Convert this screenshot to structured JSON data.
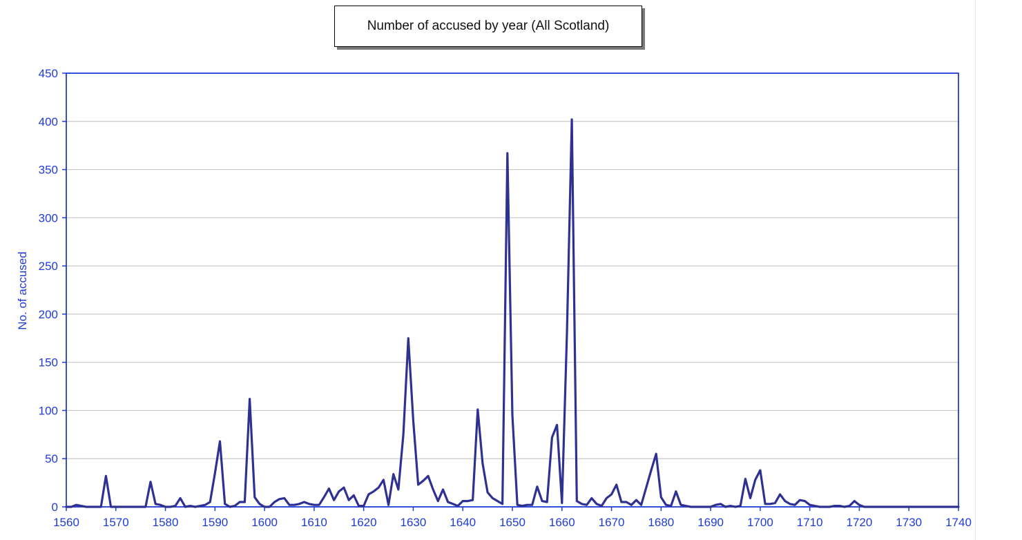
{
  "chart_data": {
    "type": "line",
    "title": "Number of accused by year (All Scotland)",
    "xlabel": "",
    "ylabel": "No. of accused",
    "xlim": [
      1560,
      1740
    ],
    "ylim": [
      0,
      450
    ],
    "x_ticks": [
      1560,
      1570,
      1580,
      1590,
      1600,
      1610,
      1620,
      1630,
      1640,
      1650,
      1660,
      1670,
      1680,
      1690,
      1700,
      1710,
      1720,
      1730,
      1740
    ],
    "y_ticks": [
      0,
      50,
      100,
      150,
      200,
      250,
      300,
      350,
      400,
      450
    ],
    "grid": "horizontal",
    "legend": "none",
    "colors": {
      "line": "#2e3192",
      "axis": "#1f3bd6",
      "tick_text": "#1f3bd6",
      "grid": "#c8c8c8"
    },
    "series": [
      {
        "x": [
          1560,
          1561,
          1562,
          1563,
          1564,
          1565,
          1566,
          1567,
          1568,
          1569,
          1570,
          1571,
          1572,
          1573,
          1574,
          1575,
          1576,
          1577,
          1578,
          1579,
          1580,
          1581,
          1582,
          1583,
          1584,
          1585,
          1586,
          1587,
          1588,
          1589,
          1590,
          1591,
          1592,
          1593,
          1594,
          1595,
          1596,
          1597,
          1598,
          1599,
          1600,
          1601,
          1602,
          1603,
          1604,
          1605,
          1606,
          1607,
          1608,
          1609,
          1610,
          1611,
          1612,
          1613,
          1614,
          1615,
          1616,
          1617,
          1618,
          1619,
          1620,
          1621,
          1622,
          1623,
          1624,
          1625,
          1626,
          1627,
          1628,
          1629,
          1630,
          1631,
          1632,
          1633,
          1634,
          1635,
          1636,
          1637,
          1638,
          1639,
          1640,
          1641,
          1642,
          1643,
          1644,
          1645,
          1646,
          1647,
          1648,
          1649,
          1650,
          1651,
          1652,
          1653,
          1654,
          1655,
          1656,
          1657,
          1658,
          1659,
          1660,
          1661,
          1662,
          1663,
          1664,
          1665,
          1666,
          1667,
          1668,
          1669,
          1670,
          1671,
          1672,
          1673,
          1674,
          1675,
          1676,
          1677,
          1678,
          1679,
          1680,
          1681,
          1682,
          1683,
          1684,
          1685,
          1686,
          1687,
          1688,
          1689,
          1690,
          1691,
          1692,
          1693,
          1694,
          1695,
          1696,
          1697,
          1698,
          1699,
          1700,
          1701,
          1702,
          1703,
          1704,
          1705,
          1706,
          1707,
          1708,
          1709,
          1710,
          1711,
          1712,
          1713,
          1714,
          1715,
          1716,
          1717,
          1718,
          1719,
          1720,
          1721,
          1722,
          1723,
          1724,
          1725,
          1726,
          1727,
          1728,
          1729,
          1730,
          1731,
          1732,
          1733,
          1734,
          1735,
          1736,
          1737,
          1738,
          1739,
          1740
        ],
        "values": [
          0,
          0,
          2,
          1,
          0,
          0,
          0,
          0,
          32,
          0,
          0,
          0,
          0,
          0,
          0,
          0,
          0,
          26,
          3,
          2,
          0,
          0,
          1,
          9,
          0,
          1,
          0,
          1,
          2,
          5,
          35,
          68,
          3,
          0,
          1,
          5,
          5,
          112,
          10,
          3,
          0,
          0,
          5,
          8,
          9,
          2,
          2,
          3,
          5,
          3,
          2,
          2,
          10,
          19,
          7,
          16,
          20,
          7,
          12,
          1,
          1,
          13,
          16,
          20,
          28,
          2,
          34,
          18,
          75,
          175,
          90,
          23,
          27,
          32,
          18,
          6,
          18,
          5,
          3,
          1,
          6,
          6,
          7,
          101,
          45,
          15,
          9,
          6,
          3,
          367,
          95,
          2,
          1,
          2,
          2,
          21,
          6,
          5,
          72,
          85,
          4,
          180,
          402,
          6,
          3,
          2,
          9,
          3,
          1,
          9,
          13,
          23,
          5,
          5,
          2,
          7,
          2,
          20,
          38,
          55,
          10,
          2,
          1,
          16,
          2,
          1,
          0,
          0,
          0,
          0,
          0,
          2,
          3,
          0,
          1,
          0,
          1,
          29,
          9,
          28,
          38,
          3,
          3,
          4,
          13,
          6,
          3,
          2,
          7,
          6,
          2,
          1,
          0,
          0,
          0,
          1,
          1,
          0,
          1,
          6,
          2,
          0,
          0,
          0,
          0,
          0,
          0,
          0,
          0,
          0,
          0,
          0,
          0,
          0,
          0,
          0,
          0,
          0,
          0,
          0,
          0
        ]
      }
    ]
  }
}
